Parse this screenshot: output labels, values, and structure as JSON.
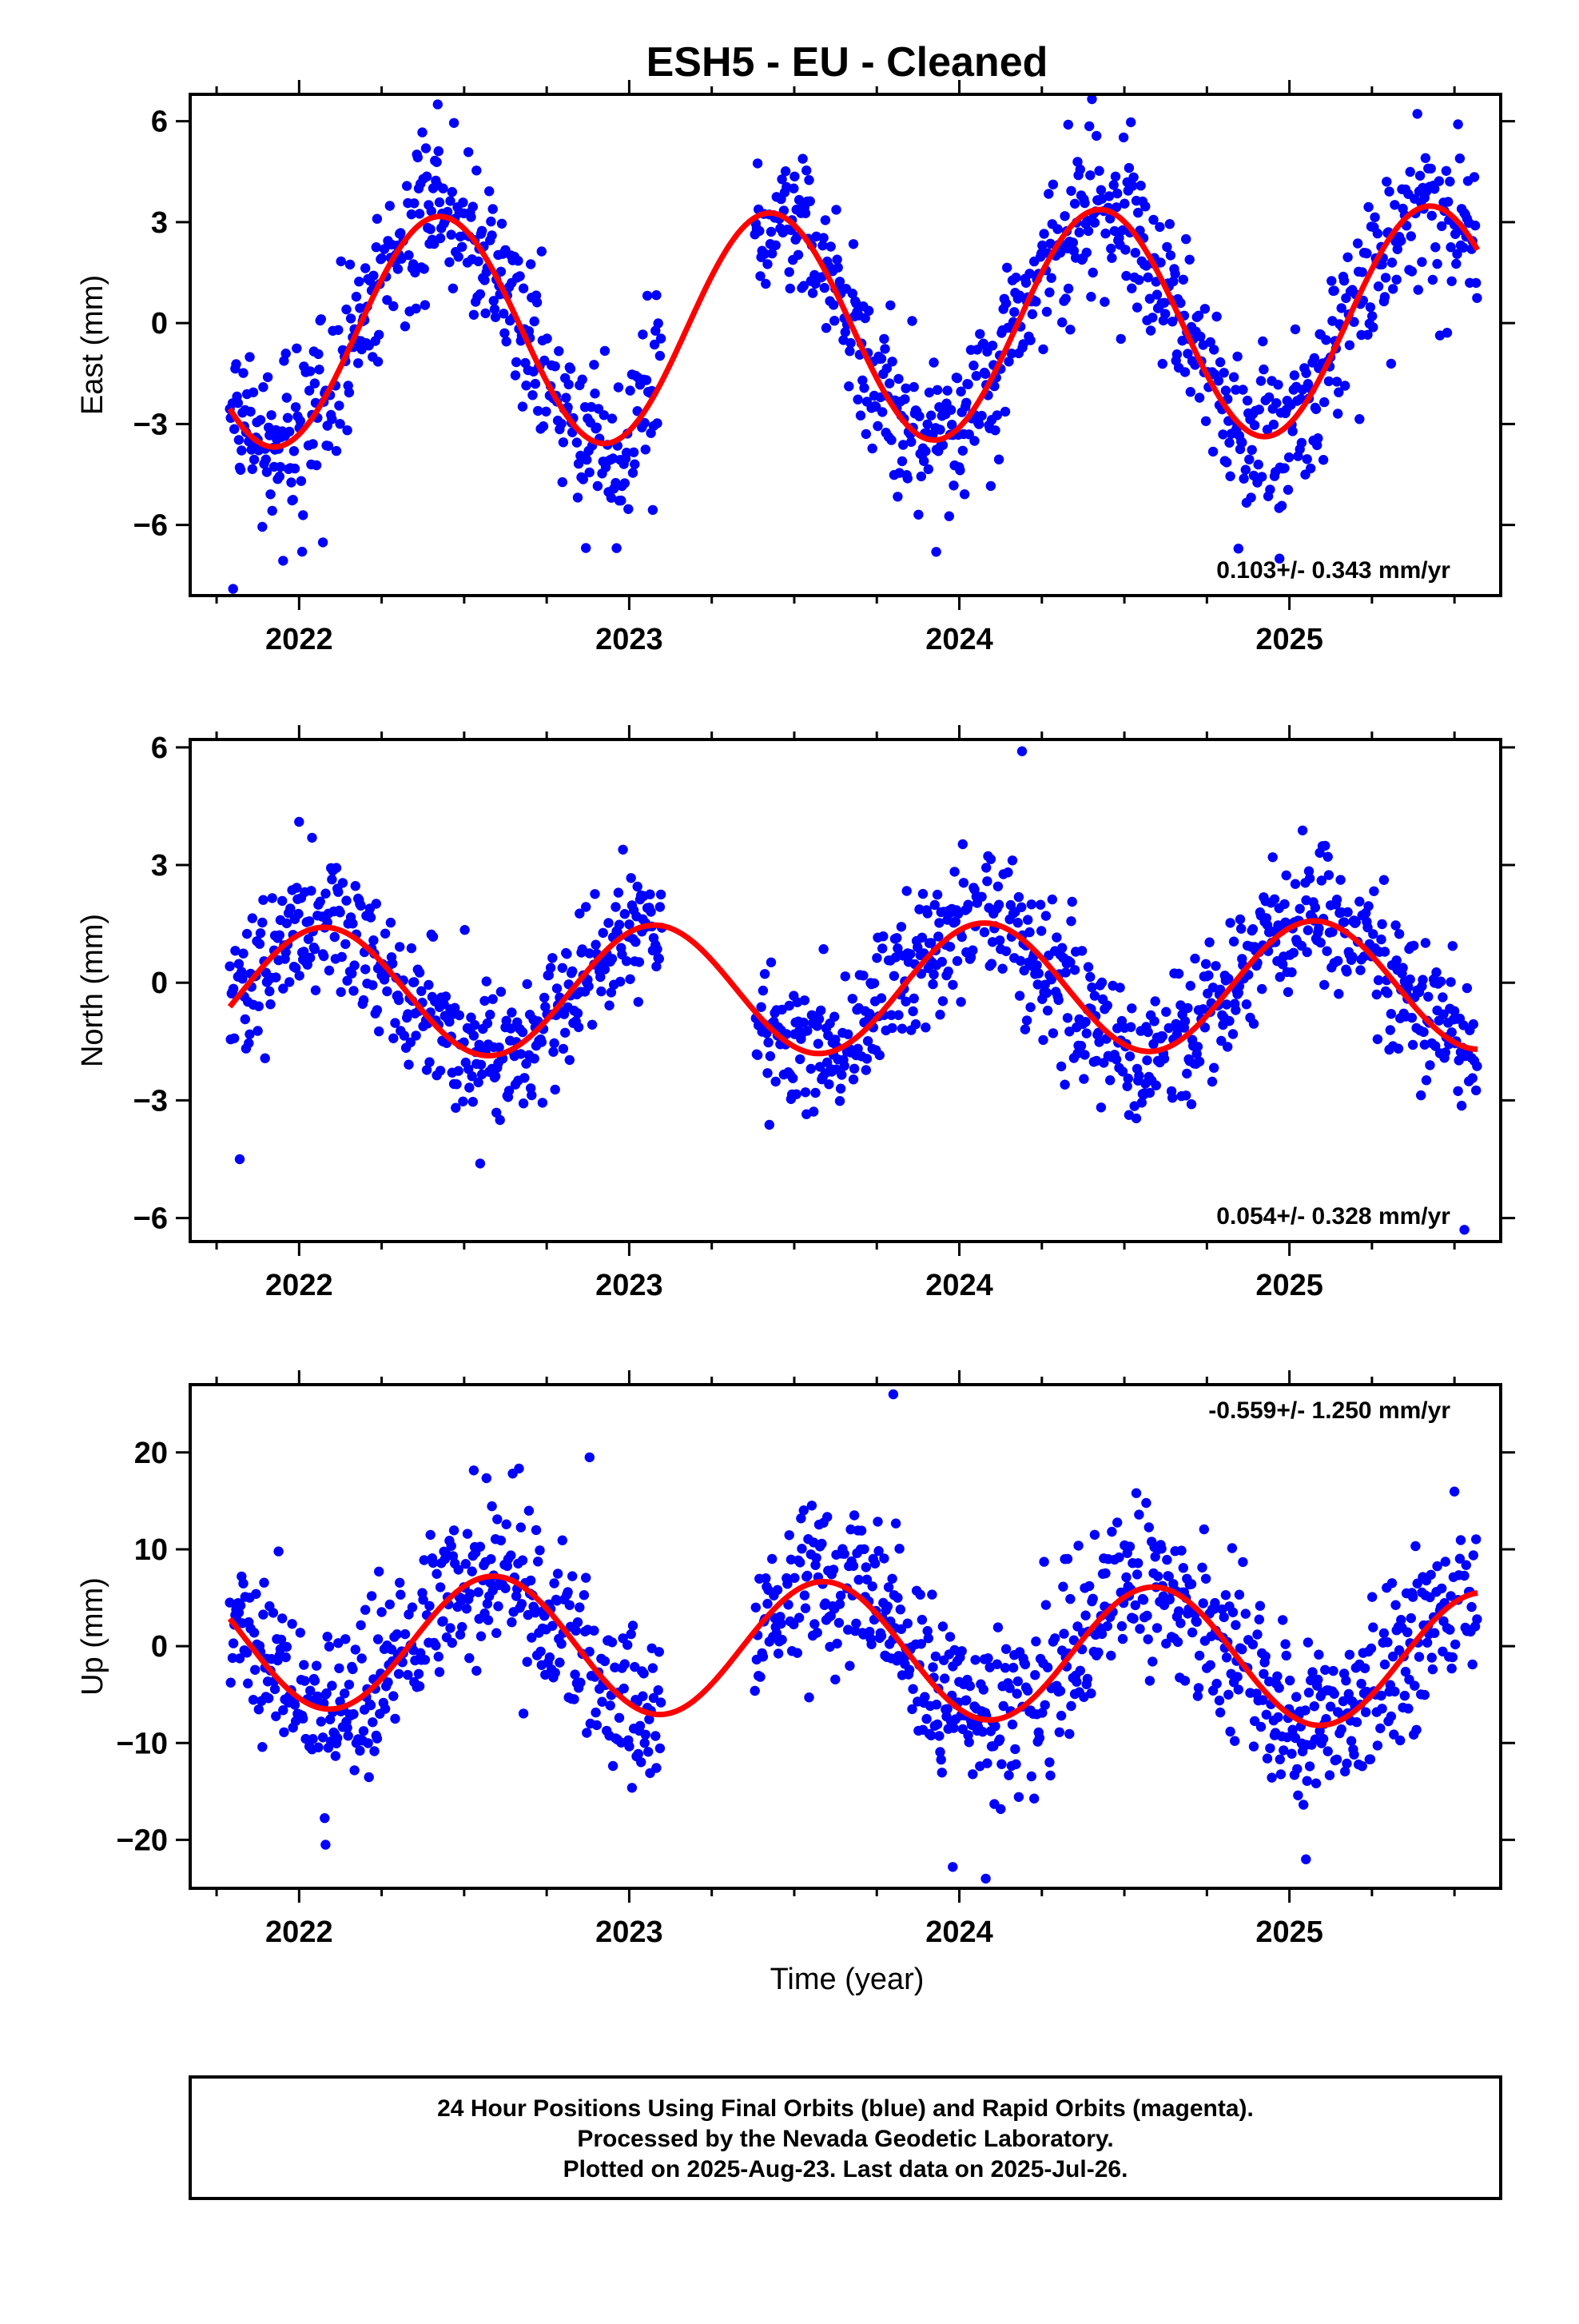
{
  "title": "ESH5  - EU - Cleaned",
  "xlabel": "Time (year)",
  "footer": {
    "line1": "24 Hour Positions Using Final Orbits (blue) and Rapid Orbits (magenta).",
    "line2": "Processed by the Nevada Geodetic Laboratory.",
    "line3": "Plotted on 2025-Aug-23. Last data on 2025-Jul-26."
  },
  "colors": {
    "data": "#0000ff",
    "model": "#ff0000",
    "frame": "#000000"
  },
  "chart_data": [
    {
      "type": "scatter",
      "ylabel": "East (mm)",
      "rate": "0.103+/- 0.343 mm/yr",
      "xlim": [
        2021.67,
        2025.64
      ],
      "ylim": [
        -8.1,
        6.8
      ],
      "xticks": [
        2022,
        2023,
        2024,
        2025
      ],
      "yticks": [
        -6,
        -3,
        0,
        3,
        6
      ],
      "ytick_labels": [
        "−6",
        "−3",
        "0",
        "3",
        "6"
      ],
      "gaps": [
        [
          2023.1,
          2023.38
        ]
      ],
      "model": {
        "offset": -0.1,
        "trend": 0.103,
        "amplitude": 3.4,
        "phase": 0.175,
        "t_start": 2021.79,
        "t_end": 2025.57
      },
      "noise": 1.2,
      "outliers": [
        [
          2021.8,
          -7.9
        ],
        [
          2022.42,
          6.5
        ],
        [
          2024.33,
          5.9
        ],
        [
          2024.97,
          -7.0
        ],
        [
          2023.93,
          -6.8
        ]
      ]
    },
    {
      "type": "scatter",
      "ylabel": "North (mm)",
      "rate": "0.054+/- 0.328 mm/yr",
      "xlim": [
        2021.67,
        2025.64
      ],
      "ylim": [
        -6.6,
        6.2
      ],
      "xticks": [
        2022,
        2023,
        2024,
        2025
      ],
      "yticks": [
        -6,
        -3,
        0,
        3,
        6
      ],
      "ytick_labels": [
        "−6",
        "−3",
        "0",
        "3",
        "6"
      ],
      "gaps": [
        [
          2023.1,
          2023.38
        ]
      ],
      "model": {
        "offset": -0.15,
        "trend": 0.054,
        "amplitude": 1.65,
        "phase": 0.825,
        "t_start": 2021.79,
        "t_end": 2025.57
      },
      "noise": 0.9,
      "outliers": [
        [
          2024.19,
          5.9
        ],
        [
          2025.53,
          -6.3
        ],
        [
          2021.82,
          -4.5
        ],
        [
          2022.0,
          4.1
        ]
      ]
    },
    {
      "type": "scatter",
      "ylabel": "Up (mm)",
      "rate": "-0.559+/- 1.250 mm/yr",
      "xlim": [
        2021.67,
        2025.64
      ],
      "ylim": [
        -25,
        27
      ],
      "xticks": [
        2022,
        2023,
        2024,
        2025
      ],
      "yticks": [
        -20,
        -10,
        0,
        10,
        20
      ],
      "ytick_labels": [
        "−20",
        "−10",
        "0",
        "10",
        "20"
      ],
      "gaps": [
        [
          2023.1,
          2023.38
        ]
      ],
      "model": {
        "offset": -0.4,
        "trend": -0.559,
        "amplitude": 7.0,
        "phase": 0.34,
        "t_start": 2021.79,
        "t_end": 2025.57
      },
      "noise": 4.3,
      "outliers": [
        [
          2023.8,
          26.0
        ],
        [
          2022.88,
          19.5
        ],
        [
          2022.08,
          -20.5
        ],
        [
          2023.98,
          -22.8
        ],
        [
          2024.08,
          -24.0
        ],
        [
          2025.05,
          -22.0
        ]
      ]
    }
  ]
}
